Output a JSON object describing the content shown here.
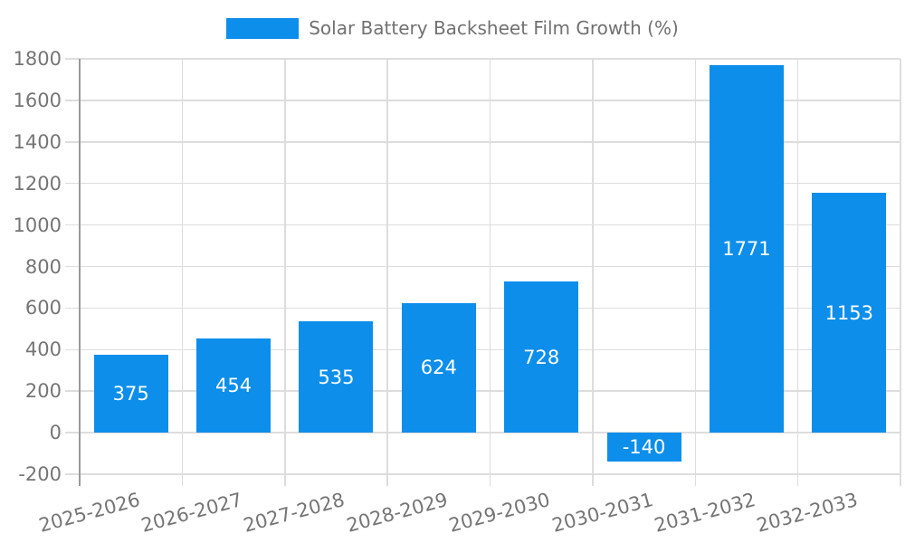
{
  "legend": {
    "label": "Solar Battery Backsheet Film Growth (%)"
  },
  "chart_data": {
    "type": "bar",
    "title": "Solar Battery Backsheet Film Growth (%)",
    "categories": [
      "2025-2026",
      "2026-2027",
      "2027-2028",
      "2028-2029",
      "2029-2030",
      "2030-2031",
      "2031-2032",
      "2032-2033"
    ],
    "values": [
      375,
      454,
      535,
      624,
      728,
      -140,
      1771,
      1153
    ],
    "xlabel": "",
    "ylabel": "",
    "ylim": [
      -200,
      1800
    ],
    "ytick_step": 200,
    "grid": true,
    "legend_position": "top-center",
    "value_labels": "inside-center",
    "x_label_rotation_deg": -15,
    "colors": {
      "bar": "#0D8EEB",
      "value_label": "#FFFFFF",
      "axis_text": "#757575",
      "legend_text": "#717171",
      "grid_line": "#DDDDDD",
      "axis_line": "#9A9A9A",
      "background": "#FFFFFF"
    }
  }
}
